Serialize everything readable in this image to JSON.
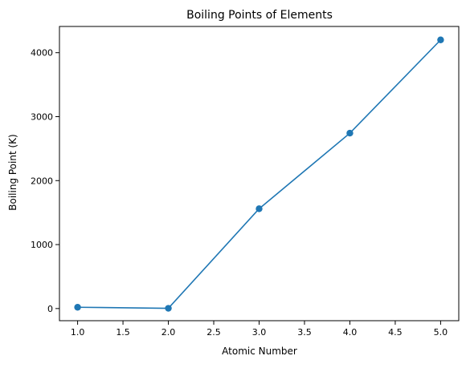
{
  "chart_data": {
    "type": "line",
    "title": "Boiling Points of Elements",
    "xlabel": "Atomic Number",
    "ylabel": "Boiling Point (K)",
    "x": [
      1,
      2,
      3,
      4,
      5
    ],
    "series": [
      {
        "values": [
          20,
          4,
          1560,
          2742,
          4200
        ],
        "color": "#1f77b4",
        "marker": "circle"
      }
    ],
    "xlim": [
      0.8,
      5.2
    ],
    "ylim": [
      -190,
      4410
    ],
    "x_ticks": [
      1.0,
      1.5,
      2.0,
      2.5,
      3.0,
      3.5,
      4.0,
      4.5,
      5.0
    ],
    "x_tick_labels": [
      "1.0",
      "1.5",
      "2.0",
      "2.5",
      "3.0",
      "3.5",
      "4.0",
      "4.5",
      "5.0"
    ],
    "y_ticks": [
      0,
      1000,
      2000,
      3000,
      4000
    ],
    "y_tick_labels": [
      "0",
      "1000",
      "2000",
      "3000",
      "4000"
    ],
    "grid": false,
    "legend": false
  }
}
